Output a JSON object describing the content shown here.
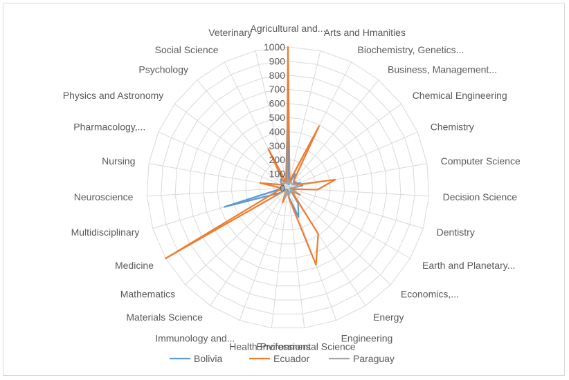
{
  "chart_data": {
    "type": "radar",
    "title": "",
    "categories": [
      "Agricultural and...",
      "Arts and Hmanities",
      "Biochemistry, Genetics...",
      "Business, Management...",
      "Chemical Engineering",
      "Chemistry",
      "Computer Science",
      "Decision Science",
      "Dentistry",
      "Earth and Planetary...",
      "Economics,...",
      "Energy",
      "Engineering",
      "Environmental Science",
      "Health Professions",
      "Immunology and...",
      "Materials Science",
      "Mathematics",
      "Medicine",
      "Multidisciplinary",
      "Neuroscience",
      "Nursing",
      "Pharmacology,...",
      "Physics and Astronomy",
      "Psychology",
      "Social Science",
      "Veterinary"
    ],
    "series": [
      {
        "name": "Bolivia",
        "color": "#5b9bd5",
        "values": [
          620,
          25,
          110,
          70,
          50,
          90,
          105,
          30,
          15,
          95,
          30,
          130,
          220,
          70,
          15,
          40,
          20,
          15,
          75,
          470,
          40,
          40,
          45,
          60,
          80,
          55,
          60
        ]
      },
      {
        "name": "Ecuador",
        "color": "#ed7d31",
        "values": [
          1000,
          50,
          490,
          60,
          70,
          55,
          340,
          210,
          30,
          90,
          40,
          390,
          580,
          80,
          30,
          110,
          30,
          20,
          1000,
          80,
          40,
          200,
          60,
          50,
          40,
          310,
          30
        ]
      },
      {
        "name": "Paraguay",
        "color": "#a5a5a5",
        "values": [
          60,
          30,
          50,
          40,
          40,
          60,
          75,
          20,
          15,
          70,
          25,
          40,
          30,
          60,
          30,
          70,
          20,
          30,
          60,
          30,
          40,
          30,
          40,
          40,
          45,
          45,
          30
        ]
      }
    ],
    "r_ticks": [
      "0",
      "100",
      "200",
      "300",
      "400",
      "500",
      "600",
      "700",
      "800",
      "900",
      "1000"
    ],
    "rlim": [
      0,
      1000
    ],
    "grid": true,
    "legend": "bottom"
  }
}
